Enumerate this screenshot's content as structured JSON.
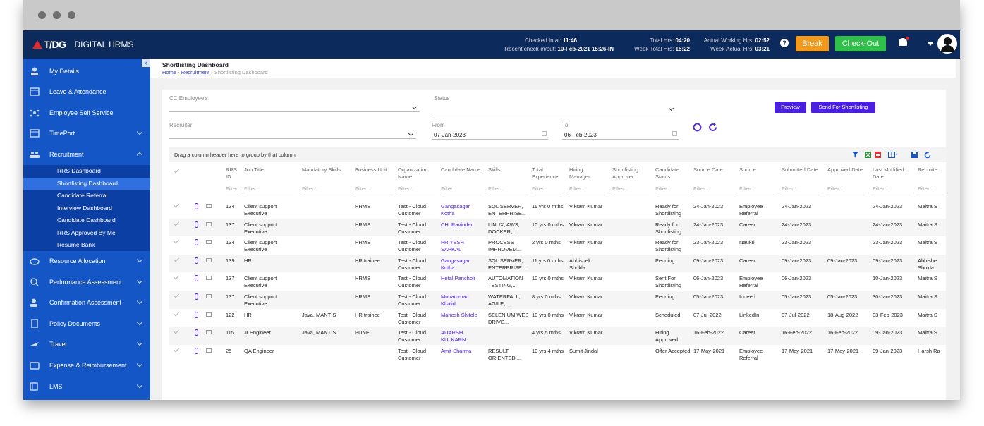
{
  "brand": {
    "name": "T/DG",
    "app": "DIGITAL HRMS"
  },
  "topbar": {
    "checked_in_label": "Checked In at:",
    "checked_in": "11:46",
    "recent_label": "Recent check-in/out:",
    "recent": "10-Feb-2021 15:26-IN",
    "total_hrs_label": "Total Hrs:",
    "total_hrs": "04:20",
    "week_total_label": "Week Total Hrs:",
    "week_total": "15:22",
    "actual_label": "Actual Working Hrs:",
    "actual": "02:52",
    "week_actual_label": "Week Actual Hrs:",
    "week_actual": "03:21",
    "help": "?",
    "break_label": "Break",
    "checkout_label": "Check-Out"
  },
  "sidebar": {
    "items": [
      {
        "label": "My Details",
        "icon": "user-icon"
      },
      {
        "label": "Leave & Attendance",
        "icon": "calendar-icon"
      },
      {
        "label": "Employee Self Service",
        "icon": "network-icon"
      },
      {
        "label": "TimePort",
        "icon": "calendar-icon"
      },
      {
        "label": "Recruitment",
        "icon": "people-icon"
      }
    ],
    "sub": [
      "RRS Dashboard",
      "Shortlisting Dashboard",
      "Candidate Referral",
      "Interview Dashboard",
      "Candidate Dashboard",
      "RRS Approved By Me",
      "Resume Bank"
    ],
    "items2": [
      {
        "label": "Resource Allocation",
        "icon": "cloud-icon"
      },
      {
        "label": "Performance Assessment",
        "icon": "search-icon"
      },
      {
        "label": "Confirmation Assessment",
        "icon": "user-check-icon"
      },
      {
        "label": "Policy Documents",
        "icon": "document-icon"
      },
      {
        "label": "Travel",
        "icon": "plane-icon"
      },
      {
        "label": "Expense & Reimbursement",
        "icon": "wallet-icon"
      },
      {
        "label": "LMS",
        "icon": "lms-icon"
      }
    ]
  },
  "page": {
    "title": "Shortlisting Dashboard",
    "crumb_home": "Home",
    "crumb_recruitment": "Recruitment",
    "crumb_current": "Shortlisting Dashboard"
  },
  "filters": {
    "cc_label": "CC Employee's",
    "status_label": "Status",
    "recruiter_label": "Recruiter",
    "from_label": "From",
    "from_value": "07-Jan-2023",
    "to_label": "To",
    "to_value": "06-Feb-2023",
    "preview": "Preview",
    "send": "Send For Shortlisting"
  },
  "grid": {
    "group_hint": "Drag a column header here to group by that column",
    "filter_placeholder": "Filter...",
    "columns": [
      "RRS ID",
      "Job Title",
      "Mandatory Skills",
      "Business Unit",
      "Organization Name",
      "Candidate Name",
      "Skills",
      "Total Experience",
      "Hiring Manager",
      "Shortlisting Approver",
      "Candidate Status",
      "Source Date",
      "Source",
      "Submitted Date",
      "Approved Date",
      "Last Modified Date",
      "Recruite"
    ],
    "rows": [
      {
        "id": "134",
        "job": "Client support Executive",
        "mand": "",
        "bu": "HRMS",
        "org": "Test - Cloud Customer",
        "cand": "Gangasagar Kotha",
        "skills": "SQL SERVER, ENTERPRISE...",
        "exp": "11 yrs 0 mths",
        "hm": "Vikram Kumar",
        "sa": "",
        "status": "Ready for Shortlisting",
        "sdate": "24-Jan-2023",
        "source": "Employee Referral",
        "subd": "24-Jan-2023",
        "appd": "",
        "lmd": "24-Jan-2023",
        "rec": "Maitra S"
      },
      {
        "id": "137",
        "job": "Client support Executive",
        "mand": "",
        "bu": "HRMS",
        "org": "Test - Cloud Customer",
        "cand": "CH. Ravinder",
        "skills": "LINUX, AWS, DOCKER,...",
        "exp": "10 yrs 0 mths",
        "hm": "Vikram Kumar",
        "sa": "",
        "status": "Ready for Shortlisting",
        "sdate": "24-Jan-2023",
        "source": "Career",
        "subd": "24-Jan-2023",
        "appd": "",
        "lmd": "24-Jan-2023",
        "rec": "Maitra S"
      },
      {
        "id": "134",
        "job": "Client support Executive",
        "mand": "",
        "bu": "HRMS",
        "org": "Test - Cloud Customer",
        "cand": "PRIYESH SAPKAL",
        "skills": "PROCESS IMPROVEM...",
        "exp": "2 yrs 0 mths",
        "hm": "Vikram Kumar",
        "sa": "",
        "status": "Ready for Shortlisting",
        "sdate": "23-Jan-2023",
        "source": "Naukri",
        "subd": "23-Jan-2023",
        "appd": "",
        "lmd": "23-Jan-2023",
        "rec": "Maitra S"
      },
      {
        "id": "139",
        "job": "HR",
        "mand": "",
        "bu": "HR trainee",
        "org": "Test - Cloud Customer",
        "cand": "Gangasagar Kotha",
        "skills": "SQL SERVER, ENTERPRISE...",
        "exp": "11 yrs 0 mths",
        "hm": "Abhishek Shukla",
        "sa": "",
        "status": "Pending",
        "sdate": "09-Jan-2023",
        "source": "Career",
        "subd": "09-Jan-2023",
        "appd": "09-Jan-2023",
        "lmd": "09-Jan-2023",
        "rec": "Abhishe Shukla"
      },
      {
        "id": "137",
        "job": "Client support Executive",
        "mand": "",
        "bu": "HRMS",
        "org": "Test - Cloud Customer",
        "cand": "Hetal Pancholi",
        "skills": "AUTOMATION TESTING,...",
        "exp": "10 yrs 0 mths",
        "hm": "Vikram Kumar",
        "sa": "",
        "status": "Sent For Shortlisting",
        "sdate": "06-Jan-2023",
        "source": "Employee Referral",
        "subd": "06-Jan-2023",
        "appd": "",
        "lmd": "10-Jan-2023",
        "rec": "Maitra S"
      },
      {
        "id": "137",
        "job": "Client support Executive",
        "mand": "",
        "bu": "HRMS",
        "org": "Test - Cloud Customer",
        "cand": "Muhammad Khalid",
        "skills": "WATERFALL, AGILE,...",
        "exp": "8 yrs 0 mths",
        "hm": "Vikram Kumar",
        "sa": "",
        "status": "Pending",
        "sdate": "05-Jan-2023",
        "source": "Indeed",
        "subd": "05-Jan-2023",
        "appd": "05-Jan-2023",
        "lmd": "30-Jan-2023",
        "rec": "Maitra S"
      },
      {
        "id": "122",
        "job": "HR",
        "mand": "Java, MANTIS",
        "bu": "HR trainee",
        "org": "Test - Cloud Customer",
        "cand": "Mahesh Shitole",
        "skills": "SELENIUM WEB DRIVE...",
        "exp": "10 yrs 0 mths",
        "hm": "Vikram Kumar",
        "sa": "",
        "status": "Scheduled",
        "sdate": "07-Jul-2022",
        "source": "LinkedIn",
        "subd": "07-Jul-2022",
        "appd": "18-Aug-2022",
        "lmd": "03-Feb-2023",
        "rec": "Maitra S"
      },
      {
        "id": "115",
        "job": "Jr.Engineer",
        "mand": "Java, MANTIS",
        "bu": "PUNE",
        "org": "Test - Cloud Customer",
        "cand": "ADARSH KULKARN",
        "skills": "",
        "exp": "4 yrs 5 mths",
        "hm": "Vikram Kumar",
        "sa": "",
        "status": "Hiring Approved",
        "sdate": "16-Feb-2022",
        "source": "Career",
        "subd": "16-Feb-2022",
        "appd": "16-Feb-2022",
        "lmd": "09-Jan-2023",
        "rec": "Maitra S"
      },
      {
        "id": "25",
        "job": "QA Engineer",
        "mand": "",
        "bu": "",
        "org": "Test - Cloud Customer",
        "cand": "Amit Sharma",
        "skills": "RESULT ORIENTED,...",
        "exp": "10 yrs 4 mths",
        "hm": "Sumit Jindal",
        "sa": "",
        "status": "Offer Accepted",
        "sdate": "17-May-2021",
        "source": "Employee Referral",
        "subd": "17-May-2021",
        "appd": "17-May-2021",
        "lmd": "09-Jan-2023",
        "rec": "Harsh Ra"
      }
    ]
  },
  "colors": {
    "topbar": "#0c2a5b",
    "sidebar": "#1456c5",
    "accent": "#4b1fe0",
    "break": "#f39a1c",
    "checkout": "#2fc04a"
  }
}
